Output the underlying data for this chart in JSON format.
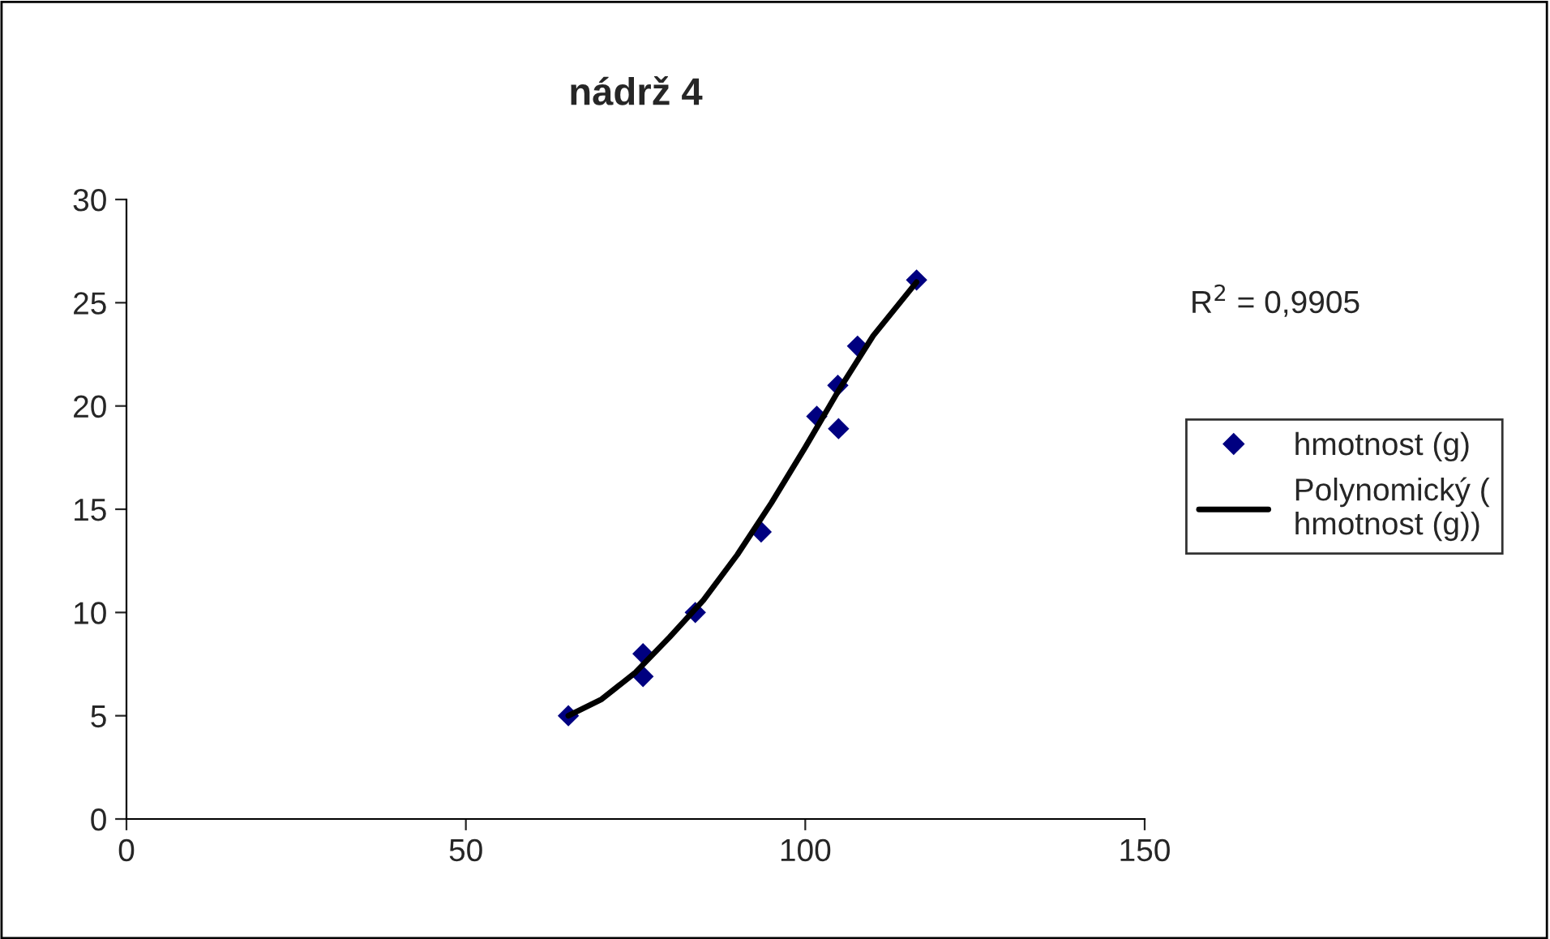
{
  "chart_data": {
    "type": "scatter",
    "title": "nádrž 4",
    "xlim": [
      0,
      150
    ],
    "xticks": [
      0,
      50,
      100,
      150
    ],
    "ylim": [
      0,
      30
    ],
    "yticks": [
      0,
      5,
      10,
      15,
      20,
      25,
      30
    ],
    "grid": false,
    "legend": "right",
    "annotations": [
      "R$^{2}$ = 0,9905"
    ],
    "series": [
      {
        "name": "hmotnost (g)",
        "marker": "diamond",
        "color": "#000080",
        "x": [
          65.1,
          76.1,
          76.1,
          83.8,
          93.5,
          101.7,
          104.9,
          104.8,
          107.7,
          116.4
        ],
        "values": [
          5.0,
          8.0,
          6.9,
          10.0,
          13.9,
          19.5,
          18.9,
          21.0,
          22.9,
          26.1
        ]
      },
      {
        "name": "Polynomický (\nhmotnost (g))",
        "type": "line",
        "marker": "none",
        "line_style": "solid",
        "color": "#000000",
        "x": [
          65.1,
          70,
          75,
          80,
          85,
          90,
          95,
          100,
          105,
          110,
          116.4
        ],
        "values": [
          5.0,
          5.8,
          7.1,
          8.8,
          10.6,
          12.8,
          15.3,
          18.0,
          20.8,
          23.4,
          26.0
        ]
      }
    ]
  }
}
